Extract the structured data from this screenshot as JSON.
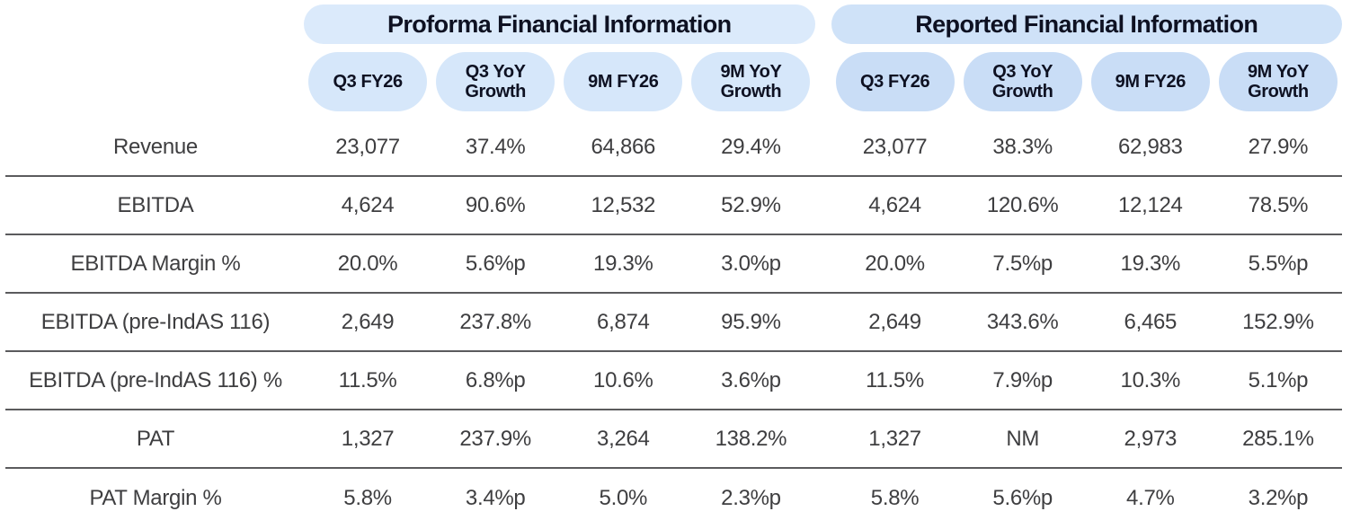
{
  "chart_data": {
    "type": "table",
    "sections": [
      {
        "label": "Proforma Financial Information",
        "columns": [
          "Q3 FY26",
          "Q3 YoY Growth",
          "9M FY26",
          "9M YoY Growth"
        ]
      },
      {
        "label": "Reported Financial Information",
        "columns": [
          "Q3 FY26",
          "Q3 YoY Growth",
          "9M FY26",
          "9M YoY Growth"
        ]
      }
    ],
    "rows": [
      {
        "label": "Revenue",
        "proforma": [
          "23,077",
          "37.4%",
          "64,866",
          "29.4%"
        ],
        "reported": [
          "23,077",
          "38.3%",
          "62,983",
          "27.9%"
        ]
      },
      {
        "label": "EBITDA",
        "proforma": [
          "4,624",
          "90.6%",
          "12,532",
          "52.9%"
        ],
        "reported": [
          "4,624",
          "120.6%",
          "12,124",
          "78.5%"
        ]
      },
      {
        "label": "EBITDA Margin %",
        "proforma": [
          "20.0%",
          "5.6%p",
          "19.3%",
          "3.0%p"
        ],
        "reported": [
          "20.0%",
          "7.5%p",
          "19.3%",
          "5.5%p"
        ]
      },
      {
        "label": "EBITDA (pre-IndAS 116)",
        "proforma": [
          "2,649",
          "237.8%",
          "6,874",
          "95.9%"
        ],
        "reported": [
          "2,649",
          "343.6%",
          "6,465",
          "152.9%"
        ]
      },
      {
        "label": "EBITDA (pre-IndAS 116) %",
        "proforma": [
          "11.5%",
          "6.8%p",
          "10.6%",
          "3.6%p"
        ],
        "reported": [
          "11.5%",
          "7.9%p",
          "10.3%",
          "5.1%p"
        ]
      },
      {
        "label": "PAT",
        "proforma": [
          "1,327",
          "237.9%",
          "3,264",
          "138.2%"
        ],
        "reported": [
          "1,327",
          "NM",
          "2,973",
          "285.1%"
        ]
      },
      {
        "label": "PAT Margin %",
        "proforma": [
          "5.8%",
          "3.4%p",
          "5.0%",
          "2.3%p"
        ],
        "reported": [
          "5.8%",
          "5.6%p",
          "4.7%",
          "3.2%p"
        ]
      }
    ]
  },
  "colors": {
    "pill_section_proforma": "#dbeafb",
    "pill_section_reported": "#cfe2f8",
    "pill_column_proforma": "#d6e7fa",
    "pill_column_reported": "#c9ddf6",
    "divider": "#5b5b5d",
    "text": "#3e3e40",
    "header_text": "#0e1122"
  }
}
